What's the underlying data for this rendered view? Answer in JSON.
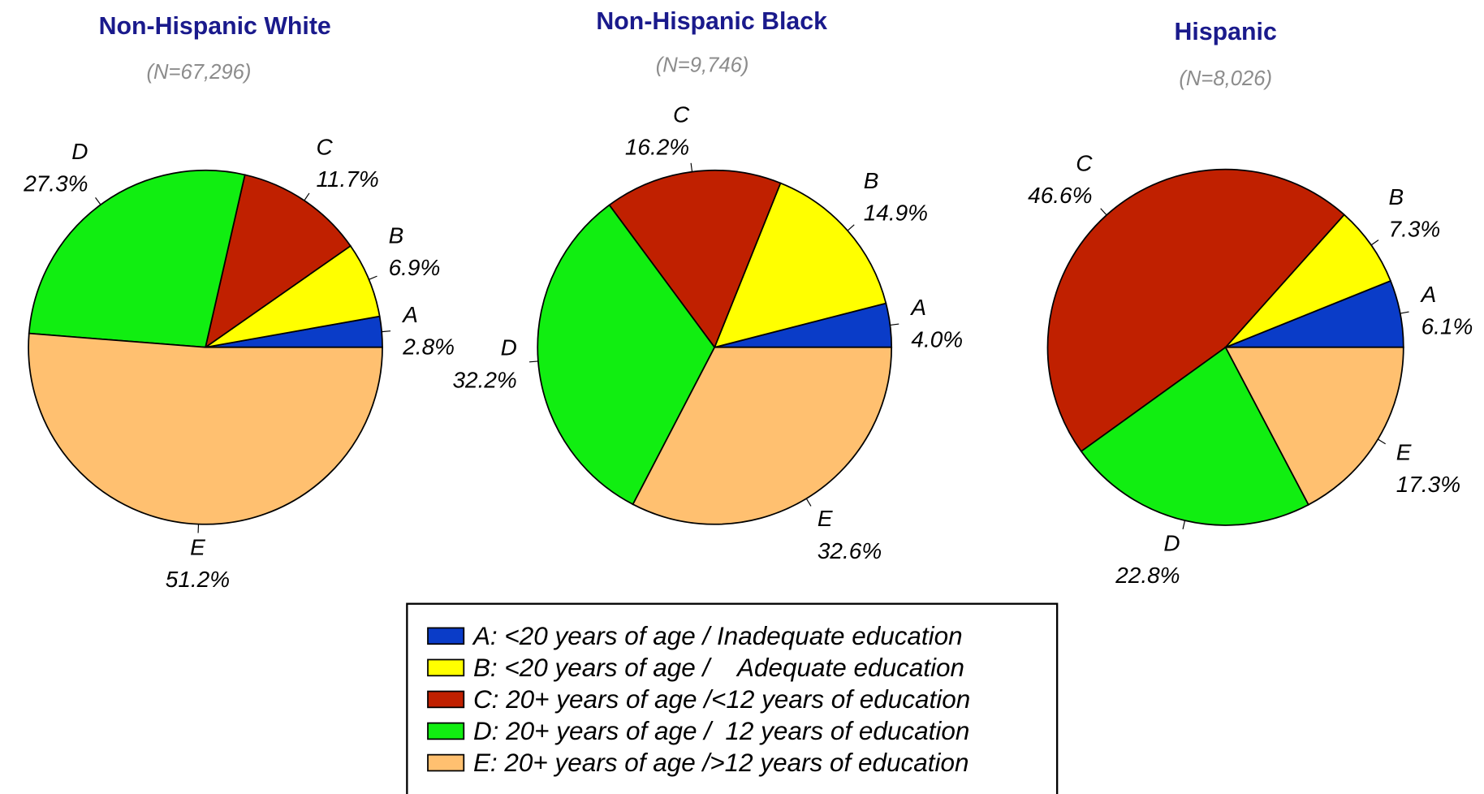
{
  "chart_data": [
    {
      "type": "pie",
      "title": "Non-Hispanic White",
      "subtitle": "(N=67,296)",
      "categories": [
        "A",
        "B",
        "C",
        "D",
        "E"
      ],
      "values": [
        2.8,
        6.9,
        11.7,
        27.3,
        51.2
      ],
      "value_labels": [
        "2.8%",
        "6.9%",
        "11.7%",
        "27.3%",
        "51.2%"
      ],
      "colors": [
        "#0a3cc8",
        "#ffff00",
        "#c02000",
        "#11ee11",
        "#ffc070"
      ]
    },
    {
      "type": "pie",
      "title": "Non-Hispanic Black",
      "subtitle": "(N=9,746)",
      "categories": [
        "A",
        "B",
        "C",
        "D",
        "E"
      ],
      "values": [
        4.0,
        14.9,
        16.2,
        32.2,
        32.6
      ],
      "value_labels": [
        "4.0%",
        "14.9%",
        "16.2%",
        "32.2%",
        "32.6%"
      ],
      "colors": [
        "#0a3cc8",
        "#ffff00",
        "#c02000",
        "#11ee11",
        "#ffc070"
      ]
    },
    {
      "type": "pie",
      "title": "Hispanic",
      "subtitle": "(N=8,026)",
      "categories": [
        "A",
        "B",
        "C",
        "D",
        "E"
      ],
      "values": [
        6.1,
        7.3,
        46.6,
        22.8,
        17.3
      ],
      "value_labels": [
        "6.1%",
        "7.3%",
        "46.6%",
        "22.8%",
        "17.3%"
      ],
      "colors": [
        "#0a3cc8",
        "#ffff00",
        "#c02000",
        "#11ee11",
        "#ffc070"
      ]
    }
  ],
  "legend": {
    "labels": [
      "A: <20 years of age / Inadequate education",
      "B: <20 years of age /    Adequate education",
      "C: 20+ years of age /<12 years of education",
      "D: 20+ years of age /  12 years of education",
      "E: 20+ years of age />12 years of education"
    ]
  }
}
